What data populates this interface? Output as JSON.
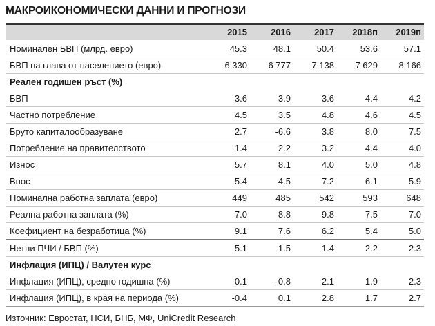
{
  "title": "МАКРОИКОНОМИЧЕСКИ  ДАННИ И ПРОГНОЗИ",
  "columns": [
    "2015",
    "2016",
    "2017",
    "2018п",
    "2019п"
  ],
  "rows": [
    {
      "label": "Номинален БВП (млрд. евро)",
      "values": [
        "45.3",
        "48.1",
        "50.4",
        "53.6",
        "57.1"
      ]
    },
    {
      "label": "БВП на глава от населението (евро)",
      "values": [
        "6 330",
        "6 777",
        "7 138",
        "7 629",
        "8 166"
      ]
    },
    {
      "label": "Реален годишен ръст (%)",
      "section": true
    },
    {
      "label": "БВП",
      "values": [
        "3.6",
        "3.9",
        "3.6",
        "4.4",
        "4.2"
      ]
    },
    {
      "label": "Частно потребление",
      "values": [
        "4.5",
        "3.5",
        "4.8",
        "4.6",
        "4.5"
      ]
    },
    {
      "label": "Бруто капиталообразуване",
      "values": [
        "2.7",
        "-6.6",
        "3.8",
        "8.0",
        "7.5"
      ]
    },
    {
      "label": "Потребление на правителството",
      "values": [
        "1.4",
        "2.2",
        "3.2",
        "4.4",
        "4.0"
      ]
    },
    {
      "label": "Износ",
      "values": [
        "5.7",
        "8.1",
        "4.0",
        "5.0",
        "4.8"
      ]
    },
    {
      "label": "Внос",
      "values": [
        "5.4",
        "4.5",
        "7.2",
        "6.1",
        "5.9"
      ]
    },
    {
      "label": "Номинална работна заплата (евро)",
      "values": [
        "449",
        "485",
        "542",
        "593",
        "648"
      ]
    },
    {
      "label": "Реална работна заплата (%)",
      "values": [
        "7.0",
        "8.8",
        "9.8",
        "7.5",
        "7.0"
      ]
    },
    {
      "label": "Коефициент на безработица (%)",
      "values": [
        "9.1",
        "7.6",
        "6.2",
        "5.4",
        "5.0"
      ],
      "dark": true
    },
    {
      "label": "Нетни ПЧИ / БВП (%)",
      "values": [
        "5.1",
        "1.5",
        "1.4",
        "2.2",
        "2.3"
      ]
    },
    {
      "label": "Инфлация (ИПЦ) / Валутен курс",
      "section": true
    },
    {
      "label": "Инфлация (ИПЦ), средно годишна (%)",
      "values": [
        "-0.1",
        "-0.8",
        "2.1",
        "1.9",
        "2.3"
      ]
    },
    {
      "label": "Инфлация (ИПЦ), в края на периода (%)",
      "values": [
        "-0.4",
        "0.1",
        "2.8",
        "1.7",
        "2.7"
      ],
      "last": true
    }
  ],
  "source": "Източник: Евростат, НСИ, БНБ, МФ, UniCredit Research"
}
